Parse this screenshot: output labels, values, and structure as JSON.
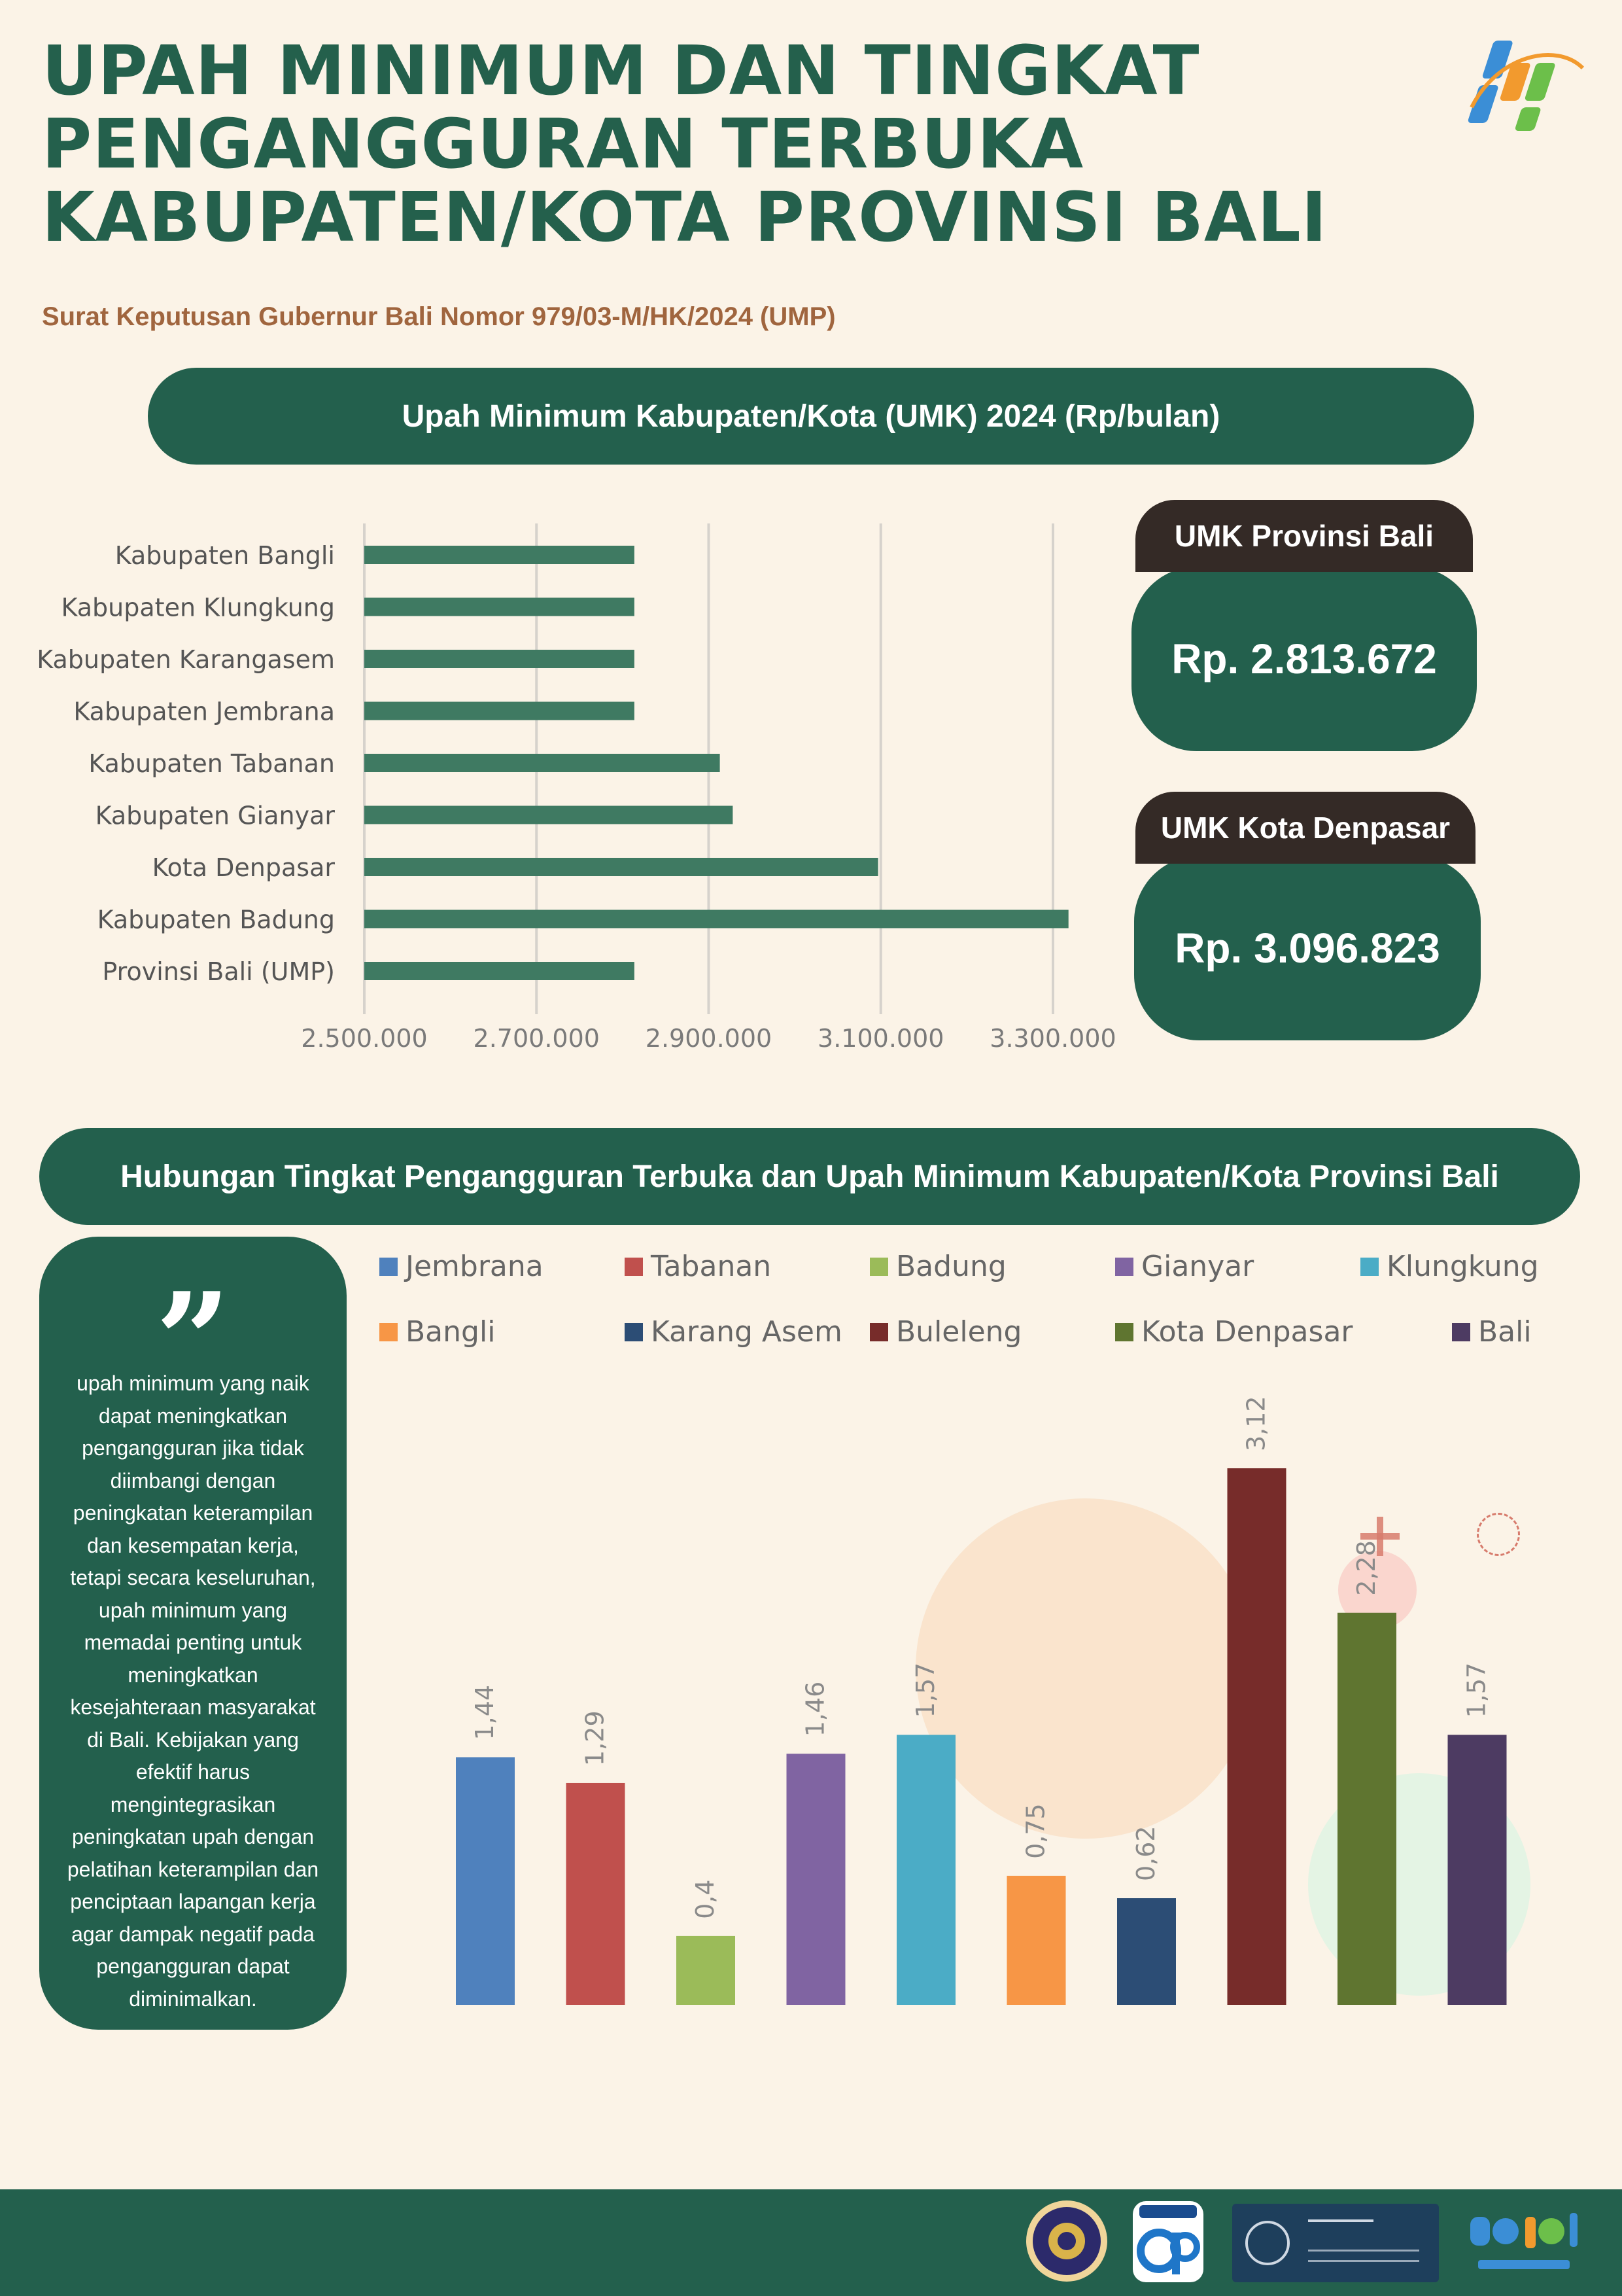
{
  "header": {
    "title_line1": "UPAH MINIMUM DAN TINGKAT",
    "title_line2": "PENGANGGURAN TERBUKA",
    "title_line3": "KABUPATEN/KOTA PROVINSI BALI",
    "subtitle": "Surat Keputusan Gubernur Bali Nomor 979/03-M/HK/2024 (UMP)"
  },
  "section1": {
    "heading": "Upah Minimum Kabupaten/Kota (UMK) 2024 (Rp/bulan)"
  },
  "cards": [
    {
      "label": "UMK Provinsi Bali",
      "value": "Rp. 2.813.672"
    },
    {
      "label": "UMK Kota Denpasar",
      "value": "Rp. 3.096.823"
    }
  ],
  "section2": {
    "heading": "Hubungan Tingkat Pengangguran Terbuka dan Upah Minimum Kabupaten/Kota Provinsi Bali",
    "quote_mark": "”",
    "quote": "upah minimum yang naik dapat meningkatkan pengangguran jika tidak diimbangi dengan peningkatan keterampilan dan kesempatan kerja, tetapi secara keseluruhan, upah minimum yang memadai penting untuk meningkatkan kesejahteraan masyarakat di Bali. Kebijakan yang efektif harus mengintegrasikan peningkatan upah dengan pelatihan keterampilan dan penciptaan lapangan kerja agar dampak negatif pada pengangguran dapat diminimalkan."
  },
  "colors": {
    "primary": "#23604d",
    "accent_brown": "#a0653e",
    "tab_dark": "#342a26",
    "background": "#fbf3e7",
    "umk_bar": "#3f7a62"
  },
  "chart_data": [
    {
      "type": "bar",
      "orientation": "horizontal",
      "title": "Upah Minimum Kabupaten/Kota (UMK) 2024 (Rp/bulan)",
      "categories": [
        "Kabupaten Bangli",
        "Kabupaten Klungkung",
        "Kabupaten Karangasem",
        "Kabupaten Jembrana",
        "Kabupaten Tabanan",
        "Kabupaten Gianyar",
        "Kota Denpasar",
        "Kabupaten Badung",
        "Provinsi Bali (UMP)"
      ],
      "values": [
        2813672,
        2813672,
        2813672,
        2813672,
        2913000,
        2928000,
        3096823,
        3318000,
        2813672
      ],
      "xlim": [
        2500000,
        3300000
      ],
      "xticks": [
        2500000,
        2700000,
        2900000,
        3100000,
        3300000
      ],
      "xtick_labels": [
        "2.500.000",
        "2.700.000",
        "2.900.000",
        "3.100.000",
        "3.300.000"
      ],
      "grid": "vertical"
    },
    {
      "type": "bar",
      "categories": [
        "Jembrana",
        "Tabanan",
        "Badung",
        "Gianyar",
        "Klungkung",
        "Bangli",
        "Karang Asem",
        "Buleleng",
        "Kota Denpasar",
        "Bali"
      ],
      "values": [
        1.44,
        1.29,
        0.4,
        1.46,
        1.57,
        0.75,
        0.62,
        3.12,
        2.28,
        1.57
      ],
      "value_labels": [
        "1,44",
        "1,29",
        "0,4",
        "1,46",
        "1,57",
        "0,75",
        "0,62",
        "3,12",
        "2,28",
        "1,57"
      ],
      "colors": [
        "#4f81bd",
        "#c0504d",
        "#9bbb59",
        "#8064a2",
        "#4bacc6",
        "#f79646",
        "#2c4d75",
        "#772c2a",
        "#5f7530",
        "#4d3b62"
      ],
      "legend_position": "top",
      "ylim": [
        0,
        3.4
      ],
      "grid": false
    }
  ]
}
